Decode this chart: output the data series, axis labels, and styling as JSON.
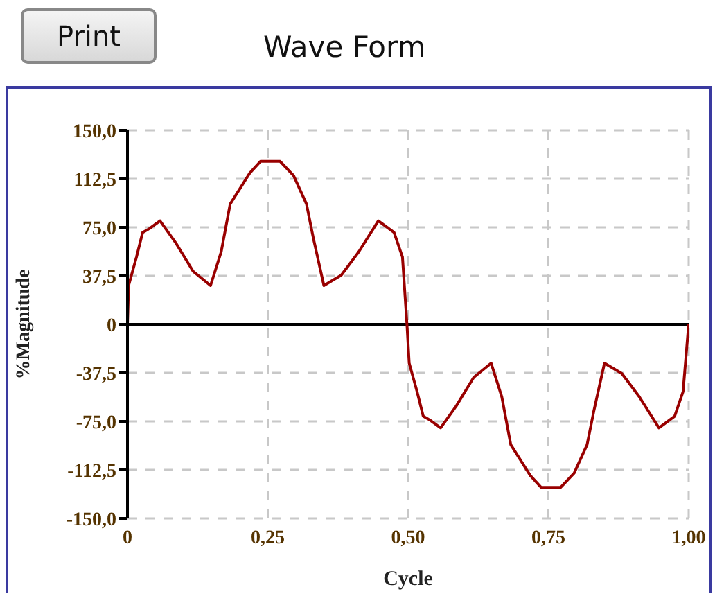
{
  "chart_data": {
    "type": "line",
    "title": "Wave Form",
    "xlabel": "Cycle",
    "ylabel": "%Magnitude",
    "annotations": [
      "Print"
    ],
    "series": [
      {
        "color": "#990000",
        "x": [
          0,
          0.002,
          0.016,
          0.027,
          0.039,
          0.058,
          0.086,
          0.117,
          0.148,
          0.167,
          0.183,
          0.218,
          0.237,
          0.272,
          0.296,
          0.319,
          0.331,
          0.35,
          0.381,
          0.412,
          0.447,
          0.475,
          0.49,
          0.498,
          0.502,
          0.516,
          0.527,
          0.539,
          0.558,
          0.586,
          0.617,
          0.648,
          0.667,
          0.683,
          0.718,
          0.737,
          0.772,
          0.796,
          0.819,
          0.831,
          0.85,
          0.881,
          0.912,
          0.947,
          0.975,
          0.99,
          1.0
        ],
        "values": [
          0,
          30,
          52,
          71,
          74,
          80,
          63,
          41,
          30,
          56,
          93,
          117,
          126,
          126,
          115,
          93,
          67,
          30,
          38,
          56,
          80,
          71,
          52,
          0,
          -30,
          -52,
          -71,
          -74,
          -80,
          -63,
          -41,
          -30,
          -56,
          -93,
          -117,
          -126,
          -126,
          -115,
          -93,
          -67,
          -30,
          -38,
          -56,
          -80,
          -71,
          -52,
          0
        ]
      }
    ],
    "xlim": [
      0,
      1
    ],
    "xticks": [
      0,
      {
        "value": 0.25,
        "label": "0,25"
      },
      {
        "value": 0.5,
        "label": "0,50"
      },
      {
        "value": 0.75,
        "label": "0,75"
      },
      {
        "value": 1,
        "label": "1,00"
      }
    ],
    "ylim": [
      -150,
      150
    ],
    "yticks": [
      {
        "value": 150,
        "label": "150,0"
      },
      {
        "value": 112.5,
        "label": "112,5"
      },
      {
        "value": 75,
        "label": "75,0"
      },
      {
        "value": 37.5,
        "label": "37,5"
      },
      0,
      {
        "value": -37.5,
        "label": "-37,5"
      },
      {
        "value": -75,
        "label": "-75,0"
      },
      {
        "value": -112.5,
        "label": "-112,5"
      },
      {
        "value": -150,
        "label": "-150,0"
      }
    ],
    "ref_lines": [
      {
        "axis": "y",
        "value": 0,
        "color": "#000000"
      }
    ],
    "grid": true,
    "marker": "none",
    "line_style": "solid",
    "legend": false
  }
}
